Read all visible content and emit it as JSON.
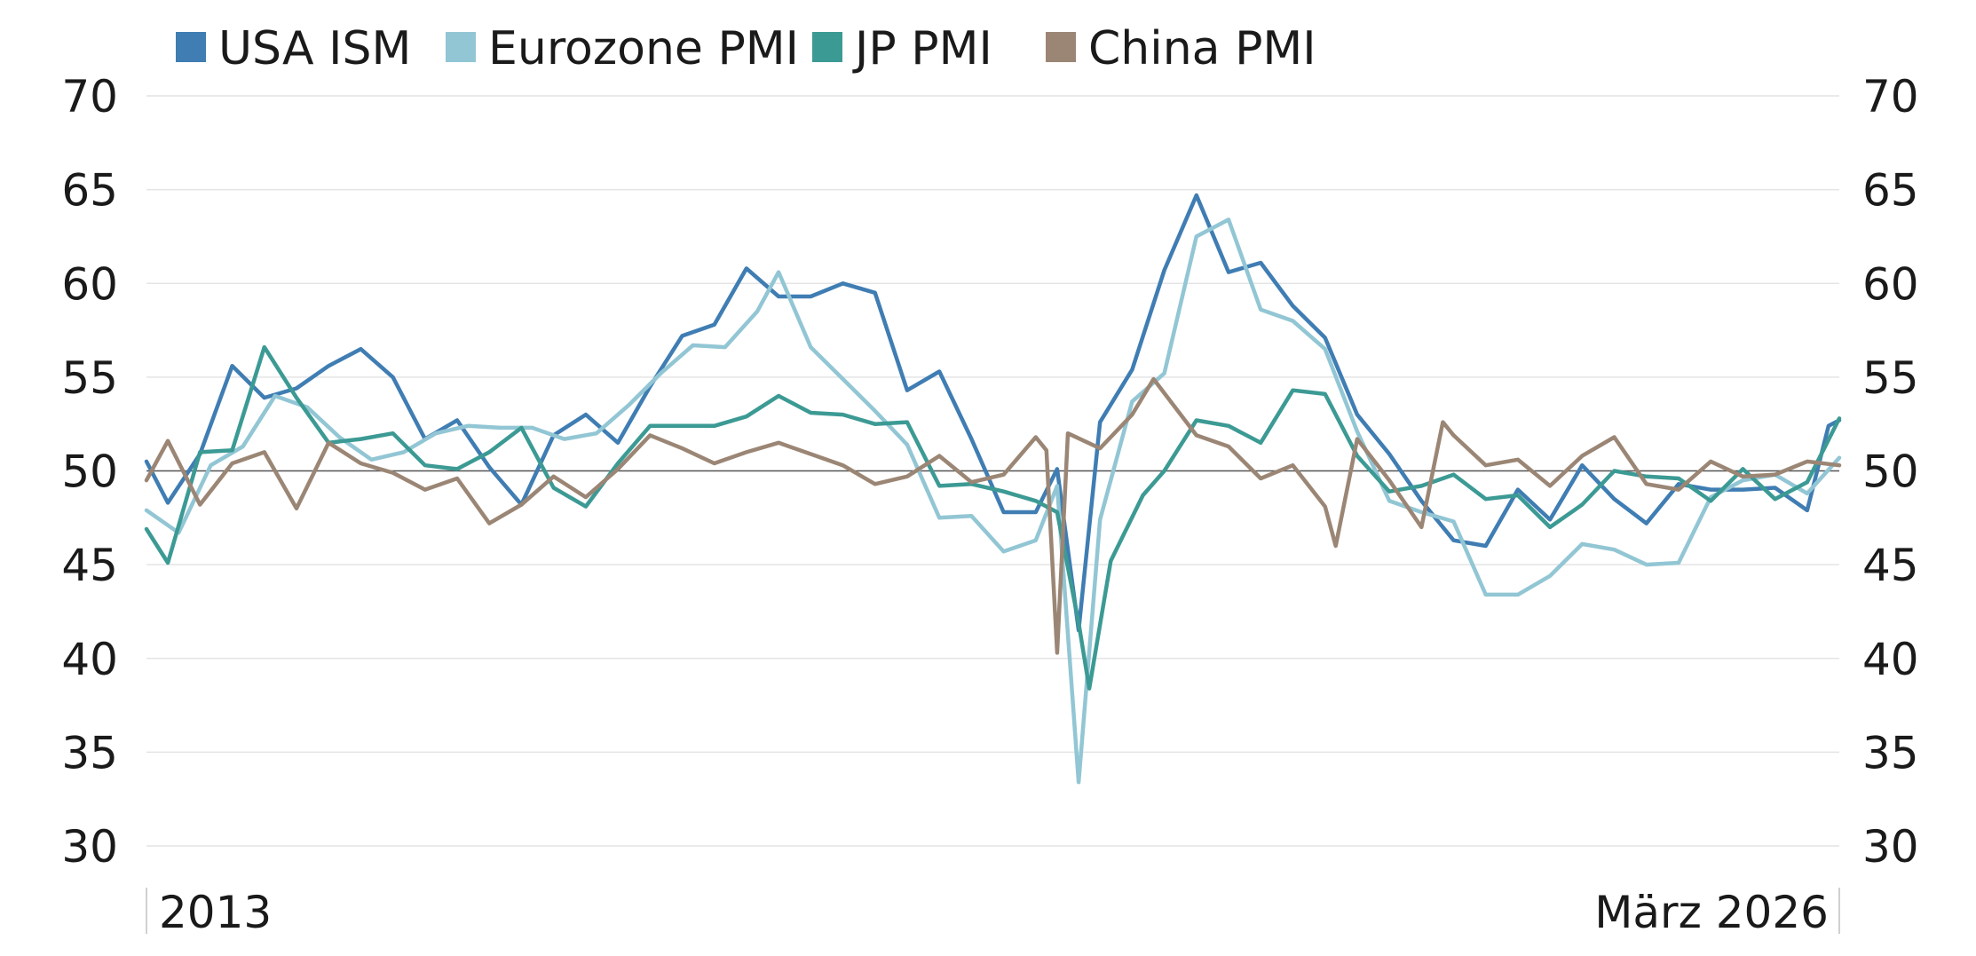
{
  "chart_data": {
    "type": "line",
    "title": "",
    "xlabel": "",
    "ylabel": "",
    "ylim": [
      30,
      70
    ],
    "yticks": [
      30,
      35,
      40,
      45,
      50,
      55,
      60,
      65,
      70
    ],
    "y_axes": "left and right",
    "reference_line": 50,
    "x_start_label": "2013",
    "x_end_label": "März 2026",
    "x_start": "2013-01",
    "x_end": "2026-03",
    "grid": "horizontal",
    "legend_position": "top-left",
    "series": [
      {
        "name": "USA ISM",
        "color": "#3f7db3",
        "x": [
          "2013-01",
          "2013-03",
          "2013-06",
          "2013-09",
          "2013-12",
          "2014-03",
          "2014-06",
          "2014-09",
          "2014-12",
          "2015-03",
          "2015-06",
          "2015-09",
          "2015-12",
          "2016-03",
          "2016-06",
          "2016-09",
          "2016-12",
          "2017-03",
          "2017-06",
          "2017-09",
          "2017-12",
          "2018-03",
          "2018-06",
          "2018-09",
          "2018-12",
          "2019-03",
          "2019-06",
          "2019-09",
          "2019-12",
          "2020-02",
          "2020-04",
          "2020-06",
          "2020-09",
          "2020-12",
          "2021-03",
          "2021-06",
          "2021-09",
          "2021-12",
          "2022-03",
          "2022-06",
          "2022-09",
          "2022-12",
          "2023-03",
          "2023-06",
          "2023-09",
          "2023-12",
          "2024-03",
          "2024-06",
          "2024-09",
          "2024-12",
          "2025-03",
          "2025-06",
          "2025-09",
          "2025-12",
          "2026-02",
          "2026-03"
        ],
        "values": [
          50.5,
          48.3,
          50.9,
          55.6,
          53.9,
          54.4,
          55.6,
          56.5,
          55.0,
          51.7,
          52.7,
          50.2,
          48.2,
          51.9,
          53.0,
          51.5,
          54.5,
          57.2,
          57.8,
          60.8,
          59.3,
          59.3,
          60.0,
          59.5,
          54.3,
          55.3,
          51.7,
          47.8,
          47.8,
          50.1,
          41.5,
          52.6,
          55.4,
          60.7,
          64.7,
          60.6,
          61.1,
          58.8,
          57.1,
          53.0,
          50.9,
          48.4,
          46.3,
          46.0,
          49.0,
          47.4,
          50.3,
          48.5,
          47.2,
          49.3,
          49.0,
          49.0,
          49.1,
          47.9,
          52.4,
          52.7
        ],
        "note": "values approximate, read from gridlines"
      },
      {
        "name": "Eurozone PMI",
        "color": "#92c6d4",
        "x": [
          "2013-01",
          "2013-04",
          "2013-07",
          "2013-10",
          "2014-01",
          "2014-04",
          "2014-07",
          "2014-10",
          "2015-01",
          "2015-04",
          "2015-07",
          "2015-10",
          "2016-01",
          "2016-04",
          "2016-07",
          "2016-10",
          "2017-01",
          "2017-04",
          "2017-07",
          "2017-10",
          "2017-12",
          "2018-03",
          "2018-06",
          "2018-09",
          "2018-12",
          "2019-03",
          "2019-06",
          "2019-09",
          "2019-12",
          "2020-02",
          "2020-04",
          "2020-06",
          "2020-09",
          "2020-12",
          "2021-03",
          "2021-06",
          "2021-09",
          "2021-12",
          "2022-03",
          "2022-06",
          "2022-09",
          "2022-12",
          "2023-03",
          "2023-06",
          "2023-09",
          "2023-12",
          "2024-03",
          "2024-06",
          "2024-09",
          "2024-12",
          "2025-03",
          "2025-06",
          "2025-09",
          "2025-12",
          "2026-03"
        ],
        "values": [
          47.9,
          46.7,
          50.3,
          51.3,
          54.0,
          53.4,
          51.8,
          50.6,
          51.0,
          52.0,
          52.4,
          52.3,
          52.3,
          51.7,
          52.0,
          53.5,
          55.2,
          56.7,
          56.6,
          58.5,
          60.6,
          56.6,
          54.9,
          53.2,
          51.4,
          47.5,
          47.6,
          45.7,
          46.3,
          49.2,
          33.4,
          47.4,
          53.7,
          55.2,
          62.5,
          63.4,
          58.6,
          58.0,
          56.5,
          52.1,
          48.4,
          47.8,
          47.3,
          43.4,
          43.4,
          44.4,
          46.1,
          45.8,
          45.0,
          45.1,
          48.6,
          49.5,
          49.8,
          48.8,
          50.7
        ],
        "note": "values approximate, read from gridlines"
      },
      {
        "name": "JP PMI",
        "color": "#3c9a94",
        "x": [
          "2013-01",
          "2013-03",
          "2013-06",
          "2013-09",
          "2013-12",
          "2014-03",
          "2014-06",
          "2014-09",
          "2014-12",
          "2015-03",
          "2015-06",
          "2015-09",
          "2015-12",
          "2016-03",
          "2016-06",
          "2016-09",
          "2016-12",
          "2017-03",
          "2017-06",
          "2017-09",
          "2017-12",
          "2018-03",
          "2018-06",
          "2018-09",
          "2018-12",
          "2019-03",
          "2019-06",
          "2019-09",
          "2019-12",
          "2020-02",
          "2020-04",
          "2020-05",
          "2020-07",
          "2020-10",
          "2020-12",
          "2021-03",
          "2021-06",
          "2021-09",
          "2021-12",
          "2022-03",
          "2022-06",
          "2022-09",
          "2022-12",
          "2023-03",
          "2023-06",
          "2023-09",
          "2023-12",
          "2024-03",
          "2024-06",
          "2024-09",
          "2024-12",
          "2025-03",
          "2025-06",
          "2025-09",
          "2025-12",
          "2026-03"
        ],
        "values": [
          46.9,
          45.1,
          51.0,
          51.1,
          56.6,
          53.9,
          51.5,
          51.7,
          52.0,
          50.3,
          50.1,
          51.0,
          52.3,
          49.1,
          48.1,
          50.4,
          52.4,
          52.4,
          52.4,
          52.9,
          54.0,
          53.1,
          53.0,
          52.5,
          52.6,
          49.2,
          49.3,
          48.9,
          48.4,
          47.8,
          41.9,
          38.4,
          45.2,
          48.7,
          50.0,
          52.7,
          52.4,
          51.5,
          54.3,
          54.1,
          50.8,
          48.9,
          49.2,
          49.8,
          48.5,
          48.7,
          47.0,
          48.2,
          50.0,
          49.7,
          49.6,
          48.4,
          50.1,
          48.5,
          49.4,
          52.8
        ],
        "note": "values approximate, read from gridlines"
      },
      {
        "name": "China PMI",
        "color": "#9b8675",
        "x": [
          "2013-01",
          "2013-03",
          "2013-06",
          "2013-09",
          "2013-12",
          "2014-03",
          "2014-06",
          "2014-09",
          "2014-12",
          "2015-03",
          "2015-06",
          "2015-09",
          "2015-12",
          "2016-03",
          "2016-06",
          "2016-09",
          "2016-12",
          "2017-03",
          "2017-06",
          "2017-09",
          "2017-12",
          "2018-03",
          "2018-06",
          "2018-09",
          "2018-12",
          "2019-03",
          "2019-06",
          "2019-09",
          "2019-12",
          "2020-01",
          "2020-02",
          "2020-03",
          "2020-06",
          "2020-09",
          "2020-11",
          "2021-03",
          "2021-06",
          "2021-09",
          "2021-12",
          "2022-03",
          "2022-04",
          "2022-06",
          "2022-09",
          "2022-12",
          "2023-02",
          "2023-03",
          "2023-06",
          "2023-09",
          "2023-12",
          "2024-03",
          "2024-06",
          "2024-09",
          "2024-12",
          "2025-03",
          "2025-06",
          "2025-09",
          "2025-12",
          "2026-03"
        ],
        "values": [
          49.5,
          51.6,
          48.2,
          50.4,
          51.0,
          48.0,
          51.5,
          50.4,
          49.9,
          49.0,
          49.6,
          47.2,
          48.2,
          49.7,
          48.6,
          50.1,
          51.9,
          51.2,
          50.4,
          51.0,
          51.5,
          50.9,
          50.3,
          49.3,
          49.7,
          50.8,
          49.4,
          49.8,
          51.8,
          51.1,
          40.3,
          52.0,
          51.2,
          53.0,
          54.9,
          51.9,
          51.3,
          49.6,
          50.3,
          48.1,
          46.0,
          51.7,
          49.5,
          47.0,
          52.6,
          51.9,
          50.3,
          50.6,
          49.2,
          50.8,
          51.8,
          49.3,
          49.0,
          50.5,
          49.7,
          49.8,
          50.5,
          50.3
        ],
        "note": "values approximate, read from gridlines"
      }
    ]
  }
}
